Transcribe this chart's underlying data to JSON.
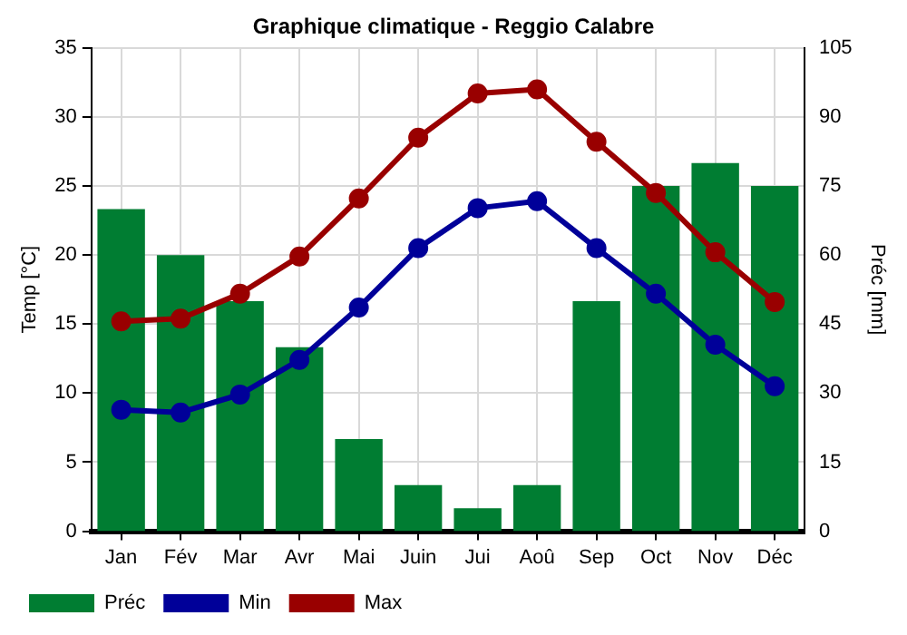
{
  "chart_data": {
    "type": "bar",
    "title": "Graphique climatique - Reggio Calabre",
    "ylabel": "Temp [°C]",
    "y2label": "Préc [mm]",
    "categories": [
      "Jan",
      "Fév",
      "Mar",
      "Avr",
      "Mai",
      "Juin",
      "Jui",
      "Aoû",
      "Sep",
      "Oct",
      "Nov",
      "Déc"
    ],
    "series": [
      {
        "name": "Préc",
        "axis": "y2",
        "color": "#007d32",
        "values": [
          70,
          60,
          50,
          40,
          20,
          10,
          5,
          10,
          50,
          75,
          80,
          75
        ]
      },
      {
        "name": "Min",
        "type": "line",
        "color": "#000099",
        "values": [
          8.8,
          8.6,
          9.9,
          12.4,
          16.2,
          20.5,
          23.4,
          23.9,
          20.5,
          17.2,
          13.5,
          10.5
        ]
      },
      {
        "name": "Max",
        "type": "line",
        "color": "#990000",
        "values": [
          15.2,
          15.4,
          17.2,
          19.9,
          24.1,
          28.5,
          31.7,
          32.0,
          28.2,
          24.5,
          20.2,
          16.6
        ]
      }
    ],
    "ylim": [
      0,
      35
    ],
    "yticks": [
      0,
      5,
      10,
      15,
      20,
      25,
      30,
      35
    ],
    "y2lim": [
      0,
      105
    ],
    "y2ticks": [
      0,
      15,
      30,
      45,
      60,
      75,
      90,
      105
    ],
    "grid": true,
    "legend": "bottom",
    "marker": "circle",
    "line_style": "solid"
  }
}
